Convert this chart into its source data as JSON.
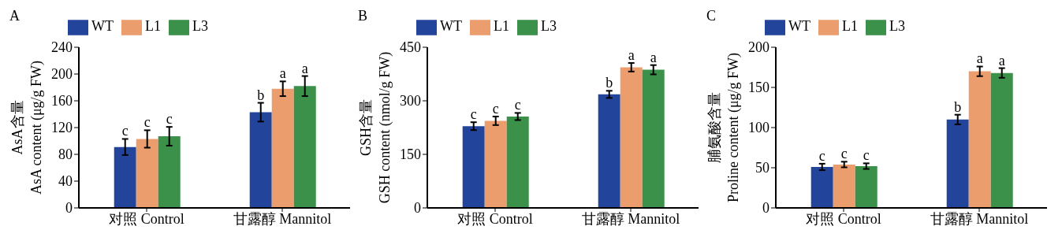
{
  "chart_data": [
    {
      "type": "bar",
      "title": "A",
      "ylabel": "AsA含量\nAsA content (μg/g FW)",
      "categories": [
        "对照 Control",
        "甘露醇 Mannitol"
      ],
      "ylim": [
        0,
        240
      ],
      "yticks": [
        0,
        40,
        80,
        120,
        160,
        200,
        240
      ],
      "legend": "top left",
      "series": [
        {
          "name": "WT",
          "color": "#23449b",
          "values": [
            91,
            143
          ],
          "errors": [
            12,
            14
          ],
          "value_labels": [
            "c",
            "b"
          ]
        },
        {
          "name": "L1",
          "color": "#eb9d6d",
          "values": [
            103,
            178
          ],
          "errors": [
            13,
            11
          ],
          "value_labels": [
            "c",
            "a"
          ]
        },
        {
          "name": "L3",
          "color": "#3c914a",
          "values": [
            107,
            182
          ],
          "errors": [
            14,
            15
          ],
          "value_labels": [
            "c",
            "a"
          ]
        }
      ]
    },
    {
      "type": "bar",
      "title": "B",
      "ylabel": "GSH含量\nGSH content (nmol/g FW)",
      "categories": [
        "对照 Control",
        "甘露醇 Mannitol"
      ],
      "ylim": [
        0,
        450
      ],
      "yticks": [
        0,
        150,
        300,
        450
      ],
      "legend": "top left",
      "series": [
        {
          "name": "WT",
          "color": "#23449b",
          "values": [
            229,
            318
          ],
          "errors": [
            11,
            10
          ],
          "value_labels": [
            "c",
            "b"
          ]
        },
        {
          "name": "L1",
          "color": "#eb9d6d",
          "values": [
            244,
            394
          ],
          "errors": [
            12,
            12
          ],
          "value_labels": [
            "c",
            "a"
          ]
        },
        {
          "name": "L3",
          "color": "#3c914a",
          "values": [
            256,
            387
          ],
          "errors": [
            10,
            13
          ],
          "value_labels": [
            "c",
            "a"
          ]
        }
      ]
    },
    {
      "type": "bar",
      "title": "C",
      "ylabel": "脯氨酸含量\nProline content (μg/g FW)",
      "categories": [
        "对照 Control",
        "甘露醇 Mannitol"
      ],
      "ylim": [
        0,
        200
      ],
      "yticks": [
        0,
        50,
        100,
        150,
        200
      ],
      "legend": "top left",
      "series": [
        {
          "name": "WT",
          "color": "#23449b",
          "values": [
            51,
            110
          ],
          "errors": [
            4,
            6
          ],
          "value_labels": [
            "c",
            "b"
          ]
        },
        {
          "name": "L1",
          "color": "#eb9d6d",
          "values": [
            54,
            170
          ],
          "errors": [
            3.5,
            6
          ],
          "value_labels": [
            "c",
            "a"
          ]
        },
        {
          "name": "L3",
          "color": "#3c914a",
          "values": [
            52,
            168
          ],
          "errors": [
            3.5,
            6
          ],
          "value_labels": [
            "c",
            "a"
          ]
        }
      ]
    }
  ]
}
